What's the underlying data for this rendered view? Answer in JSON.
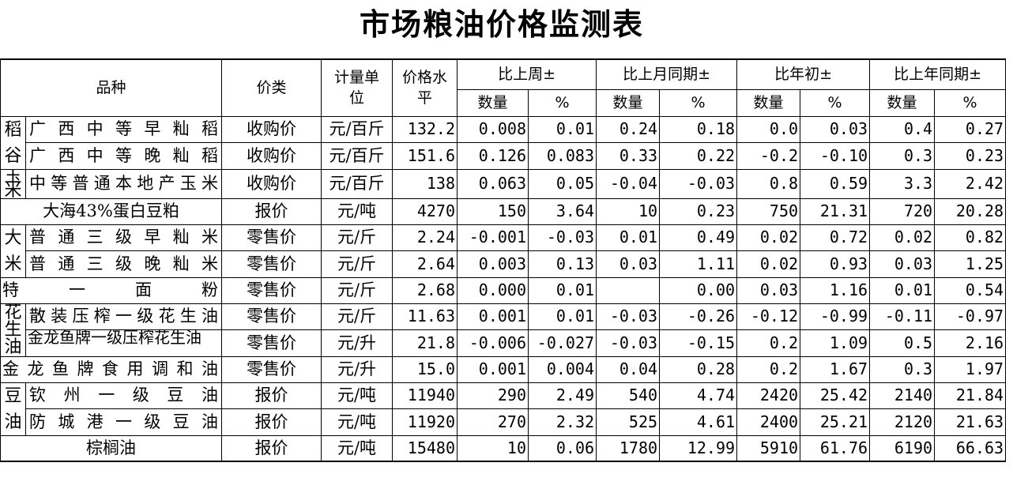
{
  "title": "市场粮油价格监测表",
  "headers": {
    "variety": "品种",
    "price_type": "价类",
    "unit": "计量单位",
    "price_level": "价格水平",
    "groups": [
      "比上周±",
      "比上月同期±",
      "比年初±",
      "比上年同期±"
    ],
    "qty": "数量",
    "pct": "%"
  },
  "rows": [
    {
      "group": "稻谷",
      "name": "广西中等早籼稻",
      "type": "收购价",
      "unit": "元/百斤",
      "price": "132.2",
      "v": [
        "0.008",
        "0.01",
        "0.24",
        "0.18",
        "0.0",
        "0.03",
        "0.4",
        "0.27"
      ]
    },
    {
      "group": "",
      "name": "广西中等晚籼稻",
      "type": "收购价",
      "unit": "元/百斤",
      "price": "151.6",
      "v": [
        "0.126",
        "0.083",
        "0.33",
        "0.22",
        "-0.2",
        "-0.10",
        "0.3",
        "0.23"
      ]
    },
    {
      "group": "玉米",
      "name": "中等普通本地产玉米",
      "type": "收购价",
      "unit": "元/百斤",
      "price": "138",
      "v": [
        "0.063",
        "0.05",
        "-0.04",
        "-0.03",
        "0.8",
        "0.59",
        "3.3",
        "2.42"
      ]
    },
    {
      "group": "",
      "name": "大海43%蛋白豆粕",
      "type": "报价",
      "unit": "元/吨",
      "price": "4270",
      "v": [
        "150",
        "3.64",
        "10",
        "0.23",
        "750",
        "21.31",
        "720",
        "20.28"
      ]
    },
    {
      "group": "大米",
      "name": "普通三级早籼米",
      "type": "零售价",
      "unit": "元/斤",
      "price": "2.24",
      "v": [
        "-0.001",
        "-0.03",
        "0.01",
        "0.49",
        "0.02",
        "0.72",
        "0.02",
        "0.82"
      ]
    },
    {
      "group": "",
      "name": "普通三级晚籼米",
      "type": "零售价",
      "unit": "元/斤",
      "price": "2.64",
      "v": [
        "0.003",
        "0.13",
        "0.03",
        "1.11",
        "0.02",
        "0.93",
        "0.03",
        "1.25"
      ]
    },
    {
      "group": "",
      "name": "特一面粉",
      "type": "零售价",
      "unit": "元/斤",
      "price": "2.68",
      "v": [
        "0.000",
        "0.01",
        "",
        "0.00",
        "0.03",
        "1.16",
        "0.01",
        "0.54"
      ]
    },
    {
      "group": "花生油",
      "name": "散装压榨一级花生油",
      "type": "零售价",
      "unit": "元/斤",
      "price": "11.63",
      "v": [
        "0.001",
        "0.01",
        "-0.03",
        "-0.26",
        "-0.12",
        "-0.99",
        "-0.11",
        "-0.97"
      ]
    },
    {
      "group": "",
      "name": "金龙鱼牌一级压榨花生油",
      "type": "零售价",
      "unit": "元/升",
      "price": "21.8",
      "v": [
        "-0.006",
        "-0.027",
        "-0.03",
        "-0.15",
        "0.2",
        "1.09",
        "0.5",
        "2.16"
      ]
    },
    {
      "group": "",
      "name": "金龙鱼牌食用调和油",
      "type": "零售价",
      "unit": "元/升",
      "price": "15.0",
      "v": [
        "0.001",
        "0.004",
        "0.04",
        "0.28",
        "0.2",
        "1.67",
        "0.3",
        "1.97"
      ]
    },
    {
      "group": "豆油",
      "name": "钦州一级豆油",
      "type": "报价",
      "unit": "元/吨",
      "price": "11940",
      "v": [
        "290",
        "2.49",
        "540",
        "4.74",
        "2420",
        "25.42",
        "2140",
        "21.84"
      ]
    },
    {
      "group": "",
      "name": "防城港一级豆油",
      "type": "报价",
      "unit": "元/吨",
      "price": "11920",
      "v": [
        "270",
        "2.32",
        "525",
        "4.61",
        "2400",
        "25.21",
        "2120",
        "21.63"
      ]
    },
    {
      "group": "",
      "name": "棕榈油",
      "type": "报价",
      "unit": "元/吨",
      "price": "15480",
      "v": [
        "10",
        "0.06",
        "1780",
        "12.99",
        "5910",
        "61.76",
        "6190",
        "66.63"
      ]
    }
  ]
}
